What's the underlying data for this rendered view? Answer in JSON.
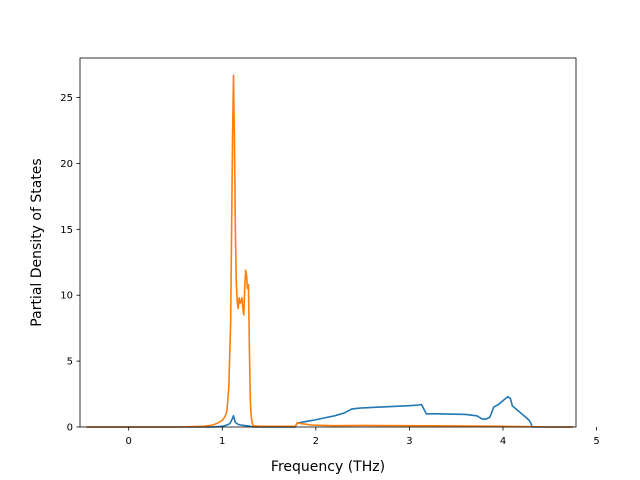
{
  "chart_data": {
    "type": "line",
    "title": "",
    "xlabel": "Frequency (THz)",
    "ylabel": "Partial Density of States",
    "xlim": [
      -0.52,
      4.78
    ],
    "ylim": [
      0,
      28
    ],
    "xticks": [
      0,
      1,
      2,
      3,
      4,
      5
    ],
    "yticks": [
      0,
      5,
      10,
      15,
      20,
      25
    ],
    "grid": false,
    "legend": "none",
    "series": [
      {
        "color": "#1f77b4",
        "x": [
          -0.45,
          0.0,
          0.5,
          0.9,
          1.0,
          1.05,
          1.08,
          1.1,
          1.12,
          1.14,
          1.17,
          1.2,
          1.25,
          1.3,
          1.32,
          1.33,
          1.78,
          1.8,
          1.9,
          2.0,
          2.1,
          2.2,
          2.3,
          2.38,
          2.42,
          2.5,
          2.8,
          3.0,
          3.1,
          3.13,
          3.18,
          3.3,
          3.6,
          3.72,
          3.78,
          3.82,
          3.86,
          3.9,
          3.95,
          4.0,
          4.05,
          4.08,
          4.1,
          4.15,
          4.2,
          4.25,
          4.28,
          4.3,
          4.31,
          4.4,
          4.75
        ],
        "y": [
          0,
          0,
          0,
          0,
          0.05,
          0.15,
          0.25,
          0.5,
          0.85,
          0.35,
          0.2,
          0.15,
          0.1,
          0.05,
          0.02,
          0,
          0,
          0.3,
          0.42,
          0.55,
          0.7,
          0.85,
          1.05,
          1.35,
          1.4,
          1.45,
          1.55,
          1.62,
          1.67,
          1.7,
          1.0,
          1.0,
          0.95,
          0.85,
          0.6,
          0.6,
          0.75,
          1.5,
          1.7,
          2.0,
          2.3,
          2.15,
          1.6,
          1.3,
          1.0,
          0.7,
          0.5,
          0.25,
          0,
          0,
          0
        ]
      },
      {
        "color": "#ff7f0e",
        "x": [
          -0.45,
          0.0,
          0.5,
          0.8,
          0.9,
          0.95,
          1.0,
          1.03,
          1.05,
          1.07,
          1.09,
          1.1,
          1.11,
          1.12,
          1.13,
          1.14,
          1.15,
          1.16,
          1.17,
          1.18,
          1.19,
          1.2,
          1.21,
          1.22,
          1.23,
          1.24,
          1.25,
          1.26,
          1.27,
          1.28,
          1.29,
          1.3,
          1.31,
          1.32,
          1.33,
          1.4,
          1.6,
          1.78,
          1.8,
          1.85,
          1.95,
          2.2,
          2.5,
          3.0,
          3.5,
          4.0,
          4.4,
          4.5,
          4.75
        ],
        "y": [
          0,
          0,
          0,
          0.05,
          0.15,
          0.3,
          0.5,
          0.8,
          1.2,
          3.0,
          8.0,
          15.0,
          22.0,
          26.7,
          22.0,
          15.0,
          11.0,
          9.5,
          9.0,
          9.8,
          9.4,
          9.5,
          9.8,
          9.0,
          8.5,
          10.5,
          11.9,
          11.5,
          10.5,
          10.8,
          6.0,
          2.0,
          0.8,
          0.3,
          0.1,
          0.05,
          0.05,
          0.05,
          0.3,
          0.25,
          0.15,
          0.1,
          0.12,
          0.1,
          0.08,
          0.05,
          0.02,
          0,
          0
        ]
      }
    ]
  }
}
